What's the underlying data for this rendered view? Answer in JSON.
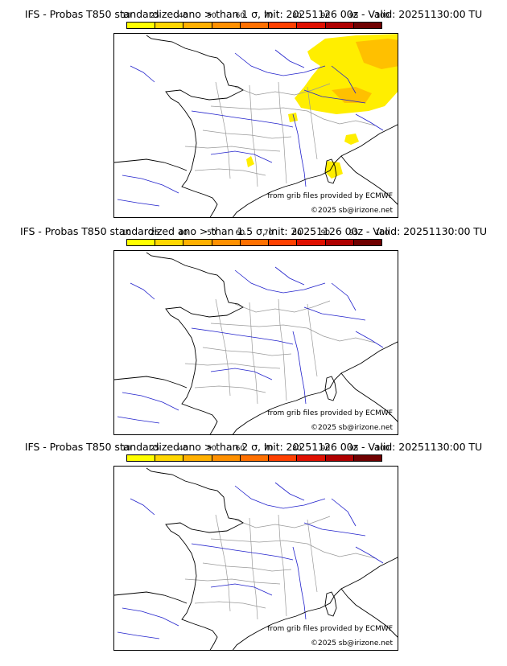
{
  "panels": [
    {
      "title": "IFS - Probas T850  standardized ano > than 1 σ, Init: 20251126 00z - Valid: 20251130:00 TU",
      "credit_source": "from grib files provided by ECMWF",
      "credit_copyright": "©2025 sb@irizone.net"
    },
    {
      "title": "IFS - Probas T850  standardized ano > than 1.5 σ, Init: 20251126 00z - Valid: 20251130:00 TU",
      "credit_source": "from grib files provided by ECMWF",
      "credit_copyright": "©2025 sb@irizone.net"
    },
    {
      "title": "IFS - Probas T850  standardized ano > than 2 σ, Init: 20251126 00z - Valid: 20251130:00 TU",
      "credit_source": "from grib files provided by ECMWF",
      "credit_copyright": "©2025 sb@irizone.net"
    }
  ],
  "colorbar": {
    "ticks": [
      "10",
      "25",
      "40",
      "50",
      "60",
      "70",
      "80",
      "90",
      "95",
      "100"
    ],
    "colors": [
      "#ffff00",
      "#ffd700",
      "#ffb000",
      "#ff9000",
      "#ff7000",
      "#ff4000",
      "#e01000",
      "#b00000",
      "#700000"
    ]
  },
  "colors": {
    "coast": "#000000",
    "rivers": "#2222cc",
    "borders": "#999999"
  }
}
